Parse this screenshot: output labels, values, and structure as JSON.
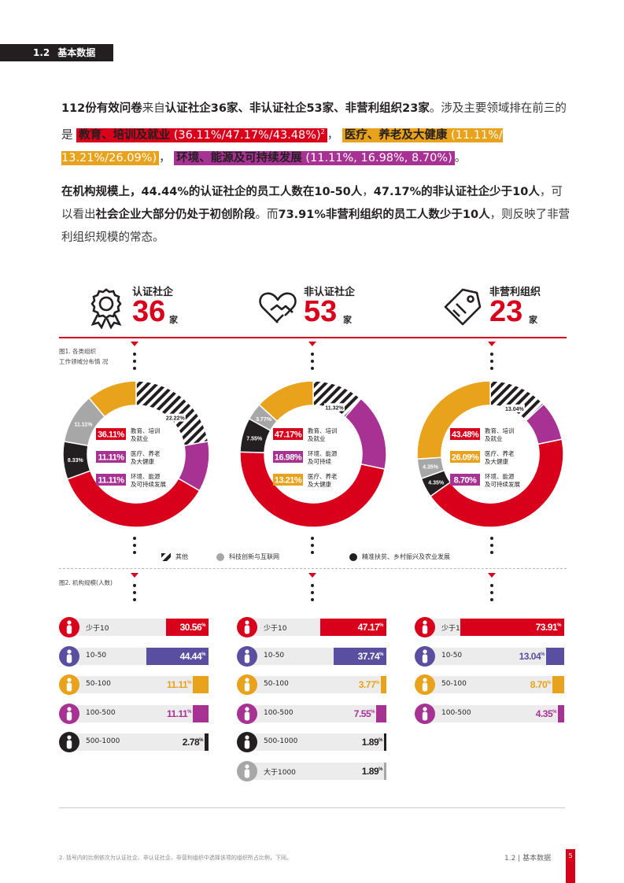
{
  "section": {
    "num": "1.2",
    "title": "基本数据"
  },
  "intro": {
    "p1_bold": "112份有效问卷",
    "p1_a": "来自",
    "p1_b": "认证社企36家、非认证社企53家、非营利组织23家",
    "p1_c": "。涉及主要领域排在前三的是",
    "hl1": "教育、培训及就业",
    "hl1_vals": "(36.11%/47.17%/43.48%)",
    "hl1_sup": "2",
    "sep1": "，",
    "hl2": "医疗、养老及大健康",
    "hl2_vals": "(11.11%/ 13.21%/26.09%)",
    "sep2": "，",
    "hl3": "环境、能源及可持续发展",
    "hl3_vals": "(11.11%, 16.98%, 8.70%)",
    "end": "。",
    "p2_a": "在机构规模上，",
    "p2_b": "44.44%的认证社企的员工人数在10-50人",
    "p2_c": "，",
    "p2_d": "47.17%的非认证社企少于10人",
    "p2_e": "，可以看出",
    "p2_f": "社会企业大部分仍处于初创阶段",
    "p2_g": "。而",
    "p2_h": "73.91%非营利组织的员工人数少于10人",
    "p2_i": "，则反映了非营利组织规模的常态。"
  },
  "stats": [
    {
      "label": "认证社企",
      "number": "36",
      "unit": "家",
      "icon": "award-icon"
    },
    {
      "label": "非认证社企",
      "number": "53",
      "unit": "家",
      "icon": "heart-hand-icon"
    },
    {
      "label": "非营利组织",
      "number": "23",
      "unit": "家",
      "icon": "tag-icon"
    }
  ],
  "figure1_caption_1": "图1. 各类组织",
  "figure1_caption_2": "工作领域分布情 况",
  "figure2_caption": "图2. 机构规模(人数)",
  "colors": {
    "red": "#d9001b",
    "orange": "#e8a21c",
    "purple": "#a83294",
    "gray": "#a7a7a7",
    "black": "#231f20",
    "indigo": "#5a4ea1"
  },
  "chart_data": [
    {
      "type": "pie",
      "name": "认证社企",
      "categories": [
        "教育、培训及就业",
        "环境、能源及可持续发展",
        "医疗、养老及大健康",
        "精准扶贫、乡村振兴及农业发展",
        "科技创新与互联网",
        "其他"
      ],
      "values": [
        36.11,
        11.11,
        11.11,
        8.33,
        11.11,
        22.22
      ],
      "labels": [
        "36.11%",
        "11.11%",
        "11.11%",
        "8.33%",
        "11.11%",
        "22.22%"
      ],
      "center": [
        {
          "value": "36.11%",
          "text1": "教育、培训",
          "text2": "及就业"
        },
        {
          "value": "11.11%",
          "text1": "医疗、养老",
          "text2": "及大健康"
        },
        {
          "value": "11.11%",
          "text1": "环境、能源",
          "text2": "及可持续发展"
        }
      ]
    },
    {
      "type": "pie",
      "name": "非认证社企",
      "categories": [
        "教育、培训及就业",
        "环境、能源及可持续发展",
        "医疗、养老及大健康",
        "精准扶贫、乡村振兴及农业发展",
        "科技创新与互联网",
        "其他"
      ],
      "values": [
        47.17,
        16.98,
        13.21,
        7.55,
        3.77,
        11.32
      ],
      "labels": [
        "47.17%",
        "16.98%",
        "13.21%",
        "7.55%",
        "3.77%",
        "11.32%"
      ],
      "center": [
        {
          "value": "47.17%",
          "text1": "教育、培训",
          "text2": "及就业"
        },
        {
          "value": "16.98%",
          "text1": "环境、能源",
          "text2": "及可持续"
        },
        {
          "value": "13.21%",
          "text1": "医疗、养老",
          "text2": "及大健康"
        }
      ]
    },
    {
      "type": "pie",
      "name": "非营利组织",
      "categories": [
        "教育、培训及就业",
        "医疗、养老及大健康",
        "环境、能源及可持续发展",
        "精准扶贫、乡村振兴及农业发展",
        "科技创新与互联网",
        "其他"
      ],
      "values": [
        43.48,
        26.09,
        8.7,
        4.35,
        4.35,
        13.04
      ],
      "labels": [
        "43.48%",
        "26.09%",
        "8.70%",
        "4.35%",
        "4.35%",
        "13.04%"
      ],
      "center": [
        {
          "value": "43.48%",
          "text1": "教育、培训",
          "text2": "及就业"
        },
        {
          "value": "26.09%",
          "text1": "医疗、养老",
          "text2": "及大健康"
        },
        {
          "value": "8.70%",
          "text1": "环境、能源",
          "text2": "及可持续发展"
        }
      ]
    },
    {
      "type": "bar",
      "name": "认证社企",
      "categories": [
        "少于10",
        "10-50",
        "50-100",
        "100-500",
        "500-1000"
      ],
      "values": [
        30.56,
        44.44,
        11.11,
        11.11,
        2.78
      ]
    },
    {
      "type": "bar",
      "name": "非认证社企",
      "categories": [
        "少于10",
        "10-50",
        "50-100",
        "100-500",
        "500-1000",
        "大于1000"
      ],
      "values": [
        47.17,
        37.74,
        3.77,
        7.55,
        1.89,
        1.89
      ]
    },
    {
      "type": "bar",
      "name": "非营利组织",
      "categories": [
        "少于10",
        "10-50",
        "50-100",
        "100-500"
      ],
      "values": [
        73.91,
        13.04,
        8.7,
        4.35
      ]
    }
  ],
  "legend": [
    {
      "label": "其他",
      "icon": "hatched-swatch"
    },
    {
      "label": "科技创新与互联网",
      "icon": "gray-dot"
    },
    {
      "label": "精准扶贫、乡村振兴及农业发展",
      "icon": "black-dot"
    }
  ],
  "footnote": "2. 括号内的比例依次为认证社企、非认证社企、非营利组织中选择该项的组织所占比例，下同。",
  "page_ref": "1.2  |  基本数据",
  "page_number": "5"
}
